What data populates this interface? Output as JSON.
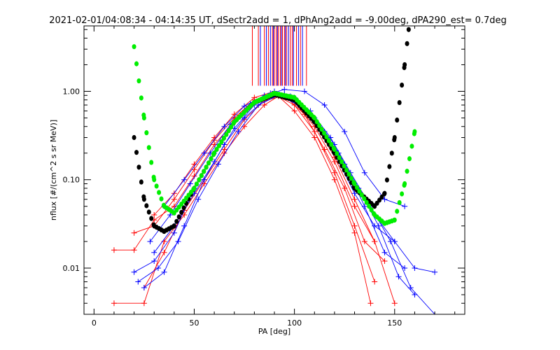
{
  "chart_data": {
    "type": "line",
    "title": "2021-02-01/04:08:34 - 04:14:35 UT, dSectr2add = 1, dPhAng2add = -9.00deg, dPA290_est=   0.7deg",
    "xlabel": "PA [deg]",
    "ylabel": "nflux [#/(cm^2 s sr MeV)]",
    "xlim": [
      -5,
      185
    ],
    "ylim": [
      0.003,
      5.5
    ],
    "yscale": "log",
    "grid": false,
    "x_ticks": [
      0,
      50,
      100,
      150
    ],
    "x_tick_labels": [
      "0",
      "50",
      "100",
      "150"
    ],
    "y_ticks": [
      0.01,
      0.1,
      1.0
    ],
    "y_tick_labels": [
      "0.01",
      "0.10",
      "1.00"
    ],
    "colors": {
      "red": "#ff0000",
      "blue": "#0000ff",
      "green": "#00ee00",
      "black": "#000000"
    },
    "series": [
      {
        "color": "red",
        "style": "line-plus",
        "x": [
          10,
          20,
          30,
          40,
          50,
          60,
          70,
          80,
          90,
          100,
          110,
          120,
          130,
          140
        ],
        "y": [
          0.016,
          0.016,
          0.035,
          0.05,
          0.11,
          0.25,
          0.45,
          0.75,
          0.92,
          0.7,
          0.35,
          0.12,
          0.03,
          0.007
        ]
      },
      {
        "color": "red",
        "style": "line-plus",
        "x": [
          10,
          25,
          35,
          45,
          55,
          65,
          75,
          85,
          92,
          100,
          110,
          120,
          130,
          138
        ],
        "y": [
          0.004,
          0.004,
          0.02,
          0.04,
          0.09,
          0.2,
          0.4,
          0.7,
          0.88,
          0.6,
          0.3,
          0.1,
          0.025,
          0.004
        ]
      },
      {
        "color": "red",
        "style": "line-plus",
        "x": [
          20,
          30,
          40,
          50,
          60,
          70,
          80,
          90,
          100,
          110,
          120,
          130,
          140,
          150
        ],
        "y": [
          0.025,
          0.03,
          0.06,
          0.13,
          0.28,
          0.5,
          0.8,
          0.95,
          0.75,
          0.4,
          0.16,
          0.05,
          0.02,
          0.004
        ]
      },
      {
        "color": "red",
        "style": "line-plus",
        "x": [
          25,
          35,
          45,
          55,
          65,
          75,
          85,
          95,
          105,
          115,
          125,
          135,
          145
        ],
        "y": [
          0.006,
          0.015,
          0.045,
          0.1,
          0.22,
          0.48,
          0.78,
          0.9,
          0.55,
          0.22,
          0.08,
          0.02,
          0.012
        ]
      },
      {
        "color": "red",
        "style": "line-plus",
        "x": [
          30,
          40,
          50,
          60,
          70,
          80,
          90,
          100,
          110,
          120,
          130,
          140
        ],
        "y": [
          0.04,
          0.07,
          0.15,
          0.3,
          0.55,
          0.85,
          1.0,
          0.8,
          0.45,
          0.18,
          0.06,
          0.02
        ]
      },
      {
        "color": "blue",
        "style": "line-plus",
        "x": [
          20,
          30,
          40,
          50,
          60,
          70,
          80,
          90,
          100,
          110,
          120,
          130,
          140,
          150
        ],
        "y": [
          0.009,
          0.012,
          0.025,
          0.08,
          0.2,
          0.45,
          0.75,
          0.95,
          0.8,
          0.45,
          0.2,
          0.07,
          0.03,
          0.02
        ]
      },
      {
        "color": "blue",
        "style": "line-plus",
        "x": [
          25,
          35,
          45,
          55,
          65,
          75,
          85,
          95,
          105,
          115,
          125,
          135,
          145,
          155
        ],
        "y": [
          0.006,
          0.009,
          0.03,
          0.1,
          0.25,
          0.5,
          0.8,
          0.92,
          0.65,
          0.35,
          0.15,
          0.05,
          0.015,
          0.01
        ]
      },
      {
        "color": "blue",
        "style": "line-plus",
        "x": [
          30,
          40,
          50,
          60,
          70,
          80,
          90,
          100,
          110,
          120,
          130,
          140,
          150,
          160,
          170
        ],
        "y": [
          0.015,
          0.03,
          0.07,
          0.16,
          0.38,
          0.7,
          1.0,
          0.85,
          0.5,
          0.25,
          0.09,
          0.04,
          0.02,
          0.01,
          0.009
        ]
      },
      {
        "color": "blue",
        "style": "line-plus",
        "x": [
          22,
          32,
          42,
          52,
          62,
          72,
          82,
          92,
          102,
          112,
          122,
          132,
          142,
          152,
          160
        ],
        "y": [
          0.007,
          0.01,
          0.02,
          0.06,
          0.15,
          0.35,
          0.7,
          0.9,
          0.7,
          0.42,
          0.2,
          0.08,
          0.03,
          0.008,
          0.005
        ]
      },
      {
        "color": "blue",
        "style": "line-plus",
        "x": [
          28,
          38,
          48,
          58,
          68,
          78,
          88,
          98,
          108,
          118,
          128,
          138,
          148,
          158,
          170
        ],
        "y": [
          0.02,
          0.04,
          0.09,
          0.2,
          0.42,
          0.72,
          0.95,
          0.88,
          0.6,
          0.3,
          0.12,
          0.05,
          0.02,
          0.006,
          0.003
        ]
      },
      {
        "color": "blue",
        "style": "line-plus",
        "x": [
          35,
          45,
          55,
          65,
          75,
          85,
          95,
          105,
          115,
          125,
          135,
          145,
          155
        ],
        "y": [
          0.05,
          0.1,
          0.2,
          0.4,
          0.68,
          0.9,
          1.05,
          1.0,
          0.7,
          0.35,
          0.12,
          0.06,
          0.05
        ]
      },
      {
        "color": "black",
        "style": "dots",
        "x": [
          20,
          25,
          30,
          35,
          40,
          50,
          60,
          70,
          80,
          90,
          100,
          110,
          120,
          130,
          140,
          145,
          150,
          155,
          157
        ],
        "y": [
          0.3,
          0.06,
          0.03,
          0.026,
          0.03,
          0.08,
          0.2,
          0.45,
          0.75,
          0.92,
          0.8,
          0.45,
          0.2,
          0.08,
          0.05,
          0.07,
          0.3,
          2.0,
          5.0
        ]
      },
      {
        "color": "green",
        "style": "dots",
        "x": [
          20,
          25,
          30,
          35,
          40,
          50,
          60,
          70,
          80,
          90,
          100,
          110,
          120,
          130,
          140,
          145,
          150,
          155,
          160
        ],
        "y": [
          3.2,
          0.5,
          0.1,
          0.05,
          0.042,
          0.08,
          0.2,
          0.45,
          0.75,
          0.95,
          0.85,
          0.5,
          0.22,
          0.09,
          0.04,
          0.032,
          0.035,
          0.09,
          0.35
        ]
      }
    ],
    "vertical_lines": [
      {
        "color": "red",
        "x": [
          79,
          82,
          85,
          87,
          89,
          90,
          91,
          92,
          93,
          94,
          95,
          96,
          97,
          98,
          99,
          101,
          103,
          106
        ]
      },
      {
        "color": "blue",
        "x": [
          83,
          86,
          88,
          89.5,
          91.5,
          93.5,
          95.5,
          97,
          99.5,
          102,
          104
        ]
      }
    ]
  }
}
